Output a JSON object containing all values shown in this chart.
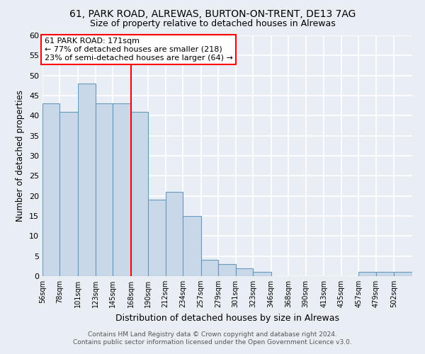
{
  "title": "61, PARK ROAD, ALREWAS, BURTON-ON-TRENT, DE13 7AG",
  "subtitle": "Size of property relative to detached houses in Alrewas",
  "xlabel": "Distribution of detached houses by size in Alrewas",
  "ylabel": "Number of detached properties",
  "bin_labels": [
    "56sqm",
    "78sqm",
    "101sqm",
    "123sqm",
    "145sqm",
    "168sqm",
    "190sqm",
    "212sqm",
    "234sqm",
    "257sqm",
    "279sqm",
    "301sqm",
    "323sqm",
    "346sqm",
    "368sqm",
    "390sqm",
    "413sqm",
    "435sqm",
    "457sqm",
    "479sqm",
    "502sqm"
  ],
  "bin_edges": [
    56,
    78,
    101,
    123,
    145,
    168,
    190,
    212,
    234,
    257,
    279,
    301,
    323,
    346,
    368,
    390,
    413,
    435,
    457,
    479,
    502
  ],
  "bar_heights": [
    43,
    41,
    48,
    43,
    43,
    41,
    19,
    21,
    15,
    4,
    3,
    2,
    1,
    0,
    0,
    0,
    0,
    0,
    1,
    1,
    1
  ],
  "bar_color": "#c8d8e8",
  "bar_edge_color": "#6699bb",
  "property_line_x": 168,
  "property_line_color": "red",
  "annotation_line1": "61 PARK ROAD: 171sqm",
  "annotation_line2": "← 77% of detached houses are smaller (218)",
  "annotation_line3": "23% of semi-detached houses are larger (64) →",
  "annotation_box_color": "white",
  "annotation_box_edge": "red",
  "ylim": [
    0,
    60
  ],
  "yticks": [
    0,
    5,
    10,
    15,
    20,
    25,
    30,
    35,
    40,
    45,
    50,
    55,
    60
  ],
  "footer_line1": "Contains HM Land Registry data © Crown copyright and database right 2024.",
  "footer_line2": "Contains public sector information licensed under the Open Government Licence v3.0.",
  "bg_color": "#e8eef4",
  "plot_bg_color": "#e8eef4",
  "grid_color": "white"
}
